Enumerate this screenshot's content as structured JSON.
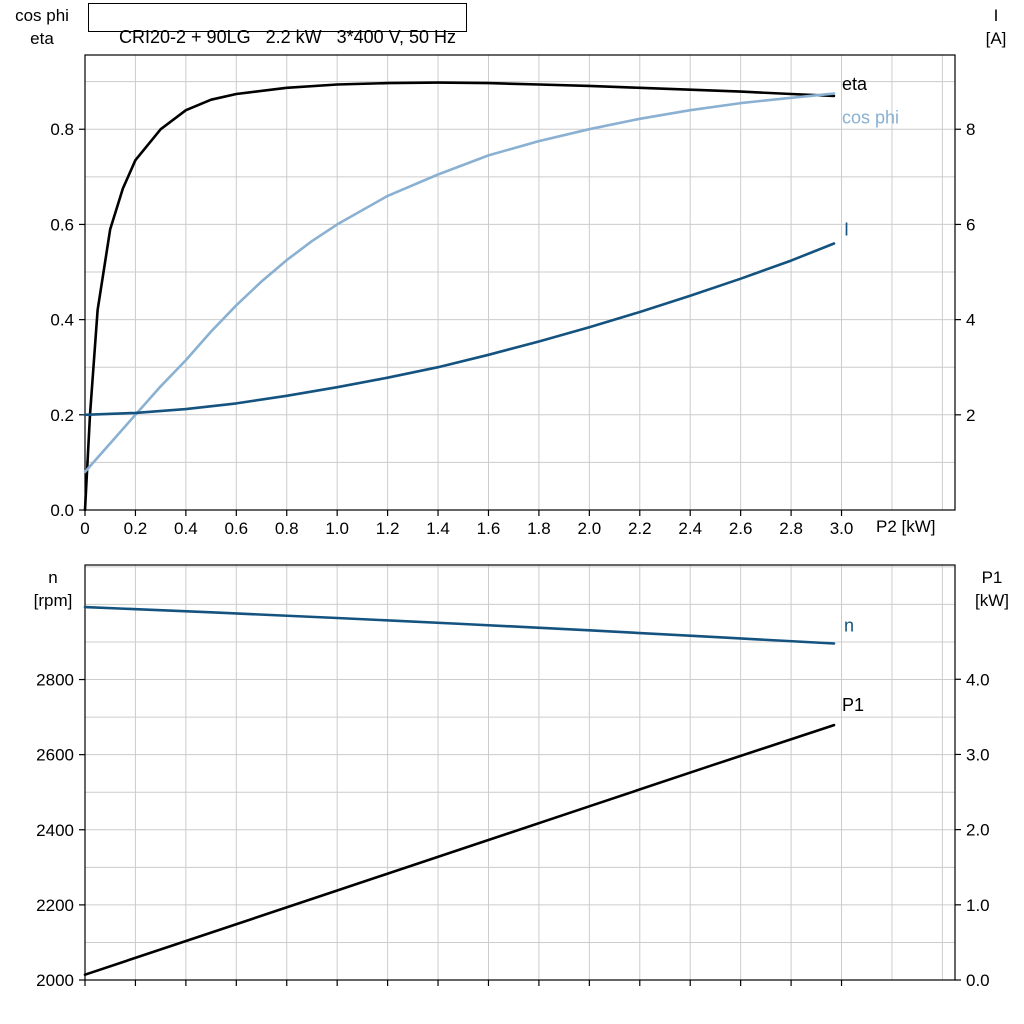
{
  "title": "CRI20-2 + 90LG   2.2 kW   3*400 V, 50 Hz",
  "colors": {
    "black": "#000000",
    "light_blue": "#8ab0d2",
    "dark_blue": "#14537f",
    "grid": "#cccccc",
    "frame": "#000000",
    "text": "#000000"
  },
  "chart_data": [
    {
      "type": "line",
      "title": "CRI20-2 + 90LG   2.2 kW   3*400 V, 50 Hz",
      "xlabel": "P2 [kW]",
      "ylabel_left": "cos phi\neta",
      "ylabel_right": "I\n[A]",
      "xlim": [
        0,
        3.45
      ],
      "x_grid_step": 0.2,
      "x_ticks": {
        "values": [
          0,
          0.2,
          0.4,
          0.6,
          0.8,
          1.0,
          1.2,
          1.4,
          1.6,
          1.8,
          2.0,
          2.2,
          2.4,
          2.6,
          2.8,
          3.0
        ],
        "labels": [
          "0",
          "0.2",
          "0.4",
          "0.6",
          "0.8",
          "1.0",
          "1.2",
          "1.4",
          "1.6",
          "1.8",
          "2.0",
          "2.2",
          "2.4",
          "2.6",
          "2.8",
          "3.0"
        ]
      },
      "left": {
        "lim": [
          0,
          0.956
        ],
        "grid_step": 0.1,
        "ticks": {
          "values": [
            0.0,
            0.2,
            0.4,
            0.6,
            0.8
          ],
          "labels": [
            "0.0",
            "0.2",
            "0.4",
            "0.6",
            "0.8"
          ]
        }
      },
      "right": {
        "lim": [
          0,
          9.56
        ],
        "ticks": {
          "values": [
            2,
            4,
            6,
            8
          ],
          "labels": [
            "2",
            "4",
            "6",
            "8"
          ]
        }
      },
      "series": [
        {
          "name": "eta",
          "axis": "left",
          "color": "#000000",
          "width": 2.6,
          "label_dx": 8,
          "label_dy": -6,
          "points": [
            [
              0,
              0
            ],
            [
              0.02,
              0.2
            ],
            [
              0.05,
              0.42
            ],
            [
              0.1,
              0.59
            ],
            [
              0.15,
              0.675
            ],
            [
              0.2,
              0.735
            ],
            [
              0.3,
              0.8
            ],
            [
              0.4,
              0.84
            ],
            [
              0.5,
              0.862
            ],
            [
              0.6,
              0.874
            ],
            [
              0.8,
              0.887
            ],
            [
              1.0,
              0.894
            ],
            [
              1.2,
              0.897
            ],
            [
              1.4,
              0.898
            ],
            [
              1.6,
              0.897
            ],
            [
              1.8,
              0.894
            ],
            [
              2.0,
              0.891
            ],
            [
              2.2,
              0.887
            ],
            [
              2.4,
              0.883
            ],
            [
              2.6,
              0.879
            ],
            [
              2.8,
              0.874
            ],
            [
              2.97,
              0.87
            ]
          ]
        },
        {
          "name": "cos phi",
          "axis": "left",
          "color": "#8ab0d2",
          "width": 2.6,
          "label_dx": 8,
          "label_dy": 30,
          "points": [
            [
              0,
              0.08
            ],
            [
              0.1,
              0.14
            ],
            [
              0.2,
              0.2
            ],
            [
              0.3,
              0.26
            ],
            [
              0.4,
              0.315
            ],
            [
              0.5,
              0.375
            ],
            [
              0.6,
              0.43
            ],
            [
              0.7,
              0.48
            ],
            [
              0.8,
              0.525
            ],
            [
              0.9,
              0.565
            ],
            [
              1.0,
              0.6
            ],
            [
              1.2,
              0.66
            ],
            [
              1.4,
              0.705
            ],
            [
              1.6,
              0.745
            ],
            [
              1.8,
              0.775
            ],
            [
              2.0,
              0.8
            ],
            [
              2.2,
              0.822
            ],
            [
              2.4,
              0.84
            ],
            [
              2.6,
              0.855
            ],
            [
              2.8,
              0.866
            ],
            [
              2.97,
              0.875
            ]
          ]
        },
        {
          "name": "I",
          "axis": "right",
          "color": "#14537f",
          "width": 2.6,
          "label_dx": 10,
          "label_dy": -8,
          "points": [
            [
              0,
              2.0
            ],
            [
              0.2,
              2.04
            ],
            [
              0.4,
              2.12
            ],
            [
              0.6,
              2.24
            ],
            [
              0.8,
              2.4
            ],
            [
              1.0,
              2.58
            ],
            [
              1.2,
              2.78
            ],
            [
              1.4,
              3.0
            ],
            [
              1.6,
              3.26
            ],
            [
              1.8,
              3.54
            ],
            [
              2.0,
              3.84
            ],
            [
              2.2,
              4.16
            ],
            [
              2.4,
              4.5
            ],
            [
              2.6,
              4.86
            ],
            [
              2.8,
              5.24
            ],
            [
              2.97,
              5.6
            ]
          ]
        }
      ]
    },
    {
      "type": "line",
      "title": "",
      "xlabel": "",
      "ylabel_left": "n\n[rpm]",
      "ylabel_right": "P1\n[kW]",
      "xlim": [
        0,
        3.45
      ],
      "x_grid_step": 0.2,
      "x_ticks": {
        "values": [
          0,
          0.2,
          0.4,
          0.6,
          0.8,
          1.0,
          1.2,
          1.4,
          1.6,
          1.8,
          2.0,
          2.2,
          2.4,
          2.6,
          2.8,
          3.0
        ],
        "labels": null
      },
      "left": {
        "lim": [
          2000,
          3105
        ],
        "grid_step": 100,
        "ticks": {
          "values": [
            2000,
            2200,
            2400,
            2600,
            2800
          ],
          "labels": [
            "2000",
            "2200",
            "2400",
            "2600",
            "2800"
          ]
        }
      },
      "right": {
        "lim": [
          0,
          5.52
        ],
        "ticks": {
          "values": [
            0.0,
            1.0,
            2.0,
            3.0,
            4.0
          ],
          "labels": [
            "0.0",
            "1.0",
            "2.0",
            "3.0",
            "4.0"
          ]
        }
      },
      "series": [
        {
          "name": "n",
          "axis": "left",
          "color": "#14537f",
          "width": 2.6,
          "label_dx": 10,
          "label_dy": -12,
          "points": [
            [
              0,
              2993
            ],
            [
              0.5,
              2979
            ],
            [
              1.0,
              2964
            ],
            [
              1.5,
              2948
            ],
            [
              2.0,
              2931
            ],
            [
              2.5,
              2913
            ],
            [
              2.97,
              2896
            ]
          ]
        },
        {
          "name": "P1",
          "axis": "right",
          "color": "#000000",
          "width": 2.6,
          "label_dx": 8,
          "label_dy": -14,
          "points": [
            [
              0,
              0.07
            ],
            [
              0.5,
              0.63
            ],
            [
              1.0,
              1.19
            ],
            [
              1.5,
              1.75
            ],
            [
              2.0,
              2.31
            ],
            [
              2.5,
              2.87
            ],
            [
              2.97,
              3.39
            ]
          ]
        }
      ]
    }
  ]
}
